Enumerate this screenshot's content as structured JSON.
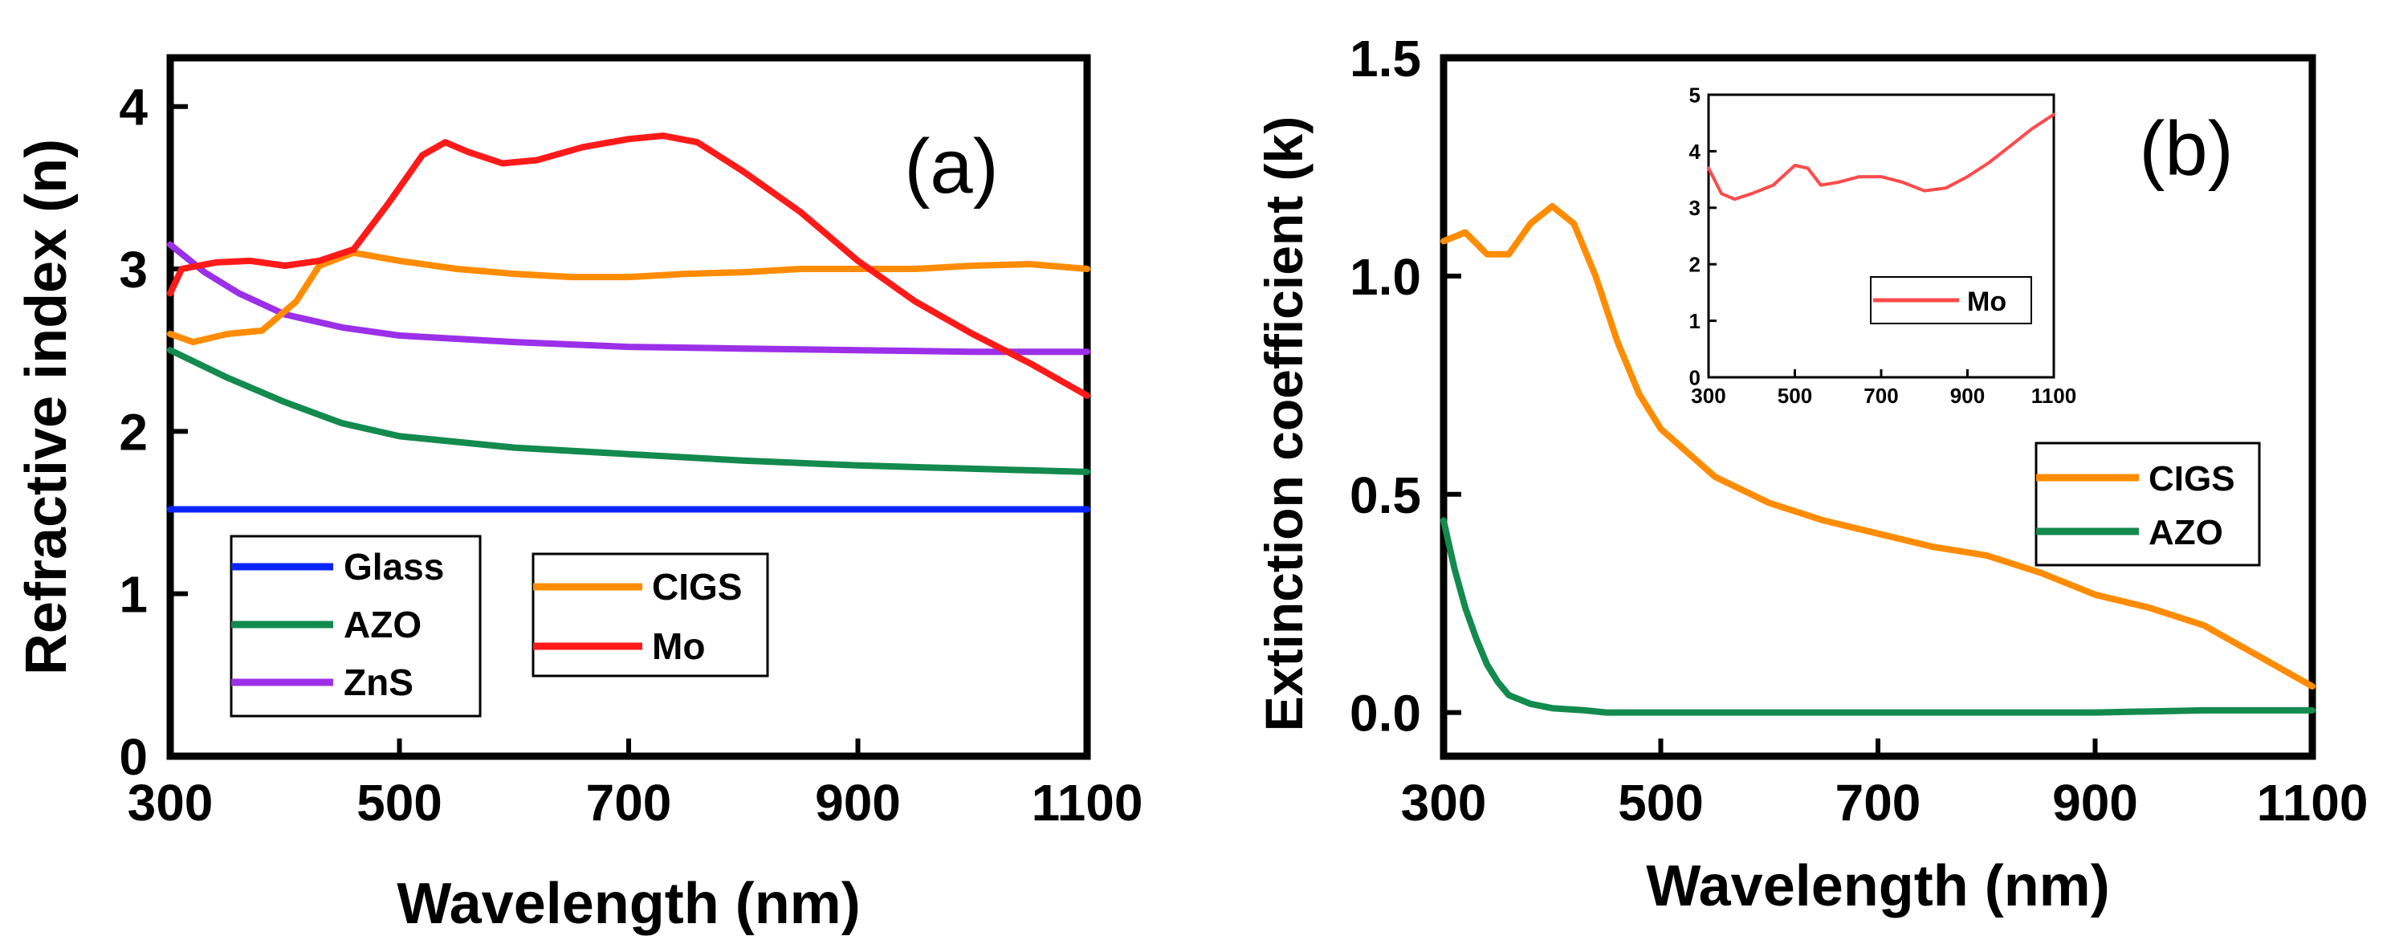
{
  "chart_data": [
    {
      "type": "line",
      "panel": "(a)",
      "xlabel": "Wavelength (nm)",
      "ylabel": "Refractive index (n)",
      "xlim": [
        300,
        1100
      ],
      "ylim": [
        0,
        4.3
      ],
      "xticks": [
        300,
        500,
        700,
        900,
        1100
      ],
      "yticks": [
        0,
        1,
        2,
        3,
        4
      ],
      "series": [
        {
          "name": "Glass",
          "color": "#0a24ff",
          "x": [
            300,
            1100
          ],
          "y": [
            1.52,
            1.52
          ]
        },
        {
          "name": "AZO",
          "color": "#138a4e",
          "x": [
            300,
            350,
            400,
            450,
            500,
            600,
            700,
            800,
            900,
            1000,
            1100
          ],
          "y": [
            2.5,
            2.33,
            2.18,
            2.05,
            1.97,
            1.9,
            1.86,
            1.82,
            1.79,
            1.77,
            1.75
          ]
        },
        {
          "name": "ZnS",
          "color": "#9b30e8",
          "x": [
            300,
            330,
            360,
            400,
            450,
            500,
            600,
            700,
            800,
            900,
            1000,
            1100
          ],
          "y": [
            3.15,
            2.98,
            2.85,
            2.72,
            2.64,
            2.59,
            2.55,
            2.52,
            2.51,
            2.5,
            2.49,
            2.49
          ]
        },
        {
          "name": "CIGS",
          "color": "#ff8c00",
          "x": [
            300,
            320,
            350,
            380,
            410,
            430,
            460,
            500,
            550,
            600,
            650,
            700,
            750,
            800,
            850,
            900,
            950,
            1000,
            1050,
            1100
          ],
          "y": [
            2.6,
            2.55,
            2.6,
            2.62,
            2.8,
            3.02,
            3.1,
            3.05,
            3.0,
            2.97,
            2.95,
            2.95,
            2.97,
            2.98,
            3.0,
            3.0,
            3.0,
            3.02,
            3.03,
            3.0
          ]
        },
        {
          "name": "Mo",
          "color": "#ff1a1a",
          "x": [
            300,
            310,
            340,
            370,
            400,
            430,
            460,
            490,
            520,
            540,
            560,
            590,
            620,
            660,
            700,
            730,
            760,
            800,
            850,
            900,
            950,
            1000,
            1050,
            1100
          ],
          "y": [
            2.85,
            3.0,
            3.04,
            3.05,
            3.02,
            3.05,
            3.12,
            3.4,
            3.7,
            3.78,
            3.72,
            3.65,
            3.67,
            3.75,
            3.8,
            3.82,
            3.78,
            3.6,
            3.35,
            3.05,
            2.8,
            2.6,
            2.42,
            2.22
          ]
        }
      ],
      "legends": [
        {
          "entries": [
            "Glass",
            "AZO",
            "ZnS"
          ],
          "placement": "bottom-left"
        },
        {
          "entries": [
            "CIGS",
            "Mo"
          ],
          "placement": "bottom-center"
        }
      ]
    },
    {
      "type": "line",
      "panel": "(b)",
      "xlabel": "Wavelength (nm)",
      "ylabel": "Extinction coefficient (k)",
      "xlim": [
        300,
        1100
      ],
      "ylim": [
        -0.1,
        1.5
      ],
      "xticks": [
        300,
        500,
        700,
        900,
        1100
      ],
      "yticks": [
        0.0,
        0.5,
        1.0,
        1.5
      ],
      "ytick_labels": [
        "0.0",
        "0.5",
        "1.0",
        "1.5"
      ],
      "series": [
        {
          "name": "CIGS",
          "color": "#ff8c00",
          "x": [
            300,
            320,
            340,
            360,
            380,
            400,
            420,
            440,
            460,
            480,
            500,
            550,
            600,
            650,
            700,
            750,
            800,
            850,
            900,
            950,
            1000,
            1050,
            1100
          ],
          "y": [
            1.08,
            1.1,
            1.05,
            1.05,
            1.12,
            1.16,
            1.12,
            1.0,
            0.85,
            0.73,
            0.65,
            0.54,
            0.48,
            0.44,
            0.41,
            0.38,
            0.36,
            0.32,
            0.27,
            0.24,
            0.2,
            0.13,
            0.06
          ]
        },
        {
          "name": "AZO",
          "color": "#138a4e",
          "x": [
            300,
            310,
            320,
            330,
            340,
            350,
            360,
            380,
            400,
            430,
            450,
            500,
            600,
            700,
            800,
            900,
            1000,
            1100
          ],
          "y": [
            0.44,
            0.33,
            0.24,
            0.17,
            0.11,
            0.07,
            0.04,
            0.02,
            0.01,
            0.005,
            0.0,
            0.0,
            0.0,
            0.0,
            0.0,
            0.0,
            0.005,
            0.005
          ]
        }
      ],
      "legends": [
        {
          "entries": [
            "CIGS",
            "AZO"
          ],
          "placement": "center-right"
        }
      ],
      "inset": {
        "type": "line",
        "xlim": [
          300,
          1100
        ],
        "ylim": [
          0,
          5
        ],
        "xticks": [
          300,
          500,
          700,
          900,
          1100
        ],
        "yticks": [
          0,
          1,
          2,
          3,
          4,
          5
        ],
        "series": [
          {
            "name": "Mo",
            "color": "#ff4a4a",
            "x": [
              300,
              330,
              360,
              400,
              450,
              500,
              530,
              560,
              600,
              650,
              700,
              750,
              800,
              850,
              900,
              950,
              1000,
              1050,
              1100
            ],
            "y": [
              3.7,
              3.25,
              3.15,
              3.25,
              3.4,
              3.75,
              3.7,
              3.4,
              3.45,
              3.55,
              3.55,
              3.45,
              3.3,
              3.35,
              3.55,
              3.8,
              4.1,
              4.4,
              4.65
            ]
          }
        ],
        "legends": [
          {
            "entries": [
              "Mo"
            ],
            "placement": "bottom-right"
          }
        ]
      }
    }
  ]
}
